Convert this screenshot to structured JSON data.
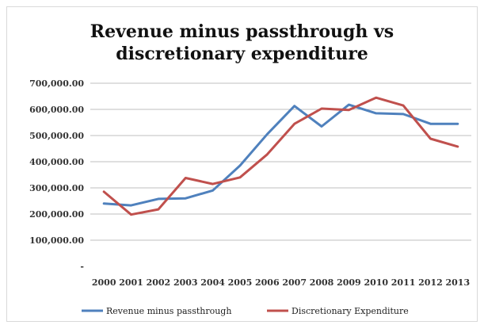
{
  "chart_data": {
    "type": "line",
    "title_lines": [
      "Revenue minus passthrough vs",
      "discretionary expenditure"
    ],
    "x": [
      "2000",
      "2001",
      "2002",
      "2003",
      "2004",
      "2005",
      "2006",
      "2007",
      "2008",
      "2009",
      "2010",
      "2011",
      "2012",
      "2013"
    ],
    "y_ticks": [
      0,
      100000,
      200000,
      300000,
      400000,
      500000,
      600000,
      700000
    ],
    "y_tick_labels": [
      "-",
      "100,000.00",
      "200,000.00",
      "300,000.00",
      "400,000.00",
      "500,000.00",
      "600,000.00",
      "700,000.00"
    ],
    "ylim": [
      0,
      700000
    ],
    "grid": true,
    "legend_position": "bottom",
    "series": [
      {
        "name": "Revenue minus passthrough",
        "color": "#4f81bd",
        "values": [
          240000,
          233000,
          258000,
          260000,
          290000,
          385000,
          505000,
          613000,
          535000,
          618000,
          585000,
          582000,
          545000,
          545000
        ]
      },
      {
        "name": "Discretionary Expenditure",
        "color": "#c0504d",
        "values": [
          285000,
          198000,
          218000,
          338000,
          315000,
          340000,
          428000,
          545000,
          603000,
          598000,
          645000,
          615000,
          488000,
          458000
        ]
      }
    ]
  }
}
